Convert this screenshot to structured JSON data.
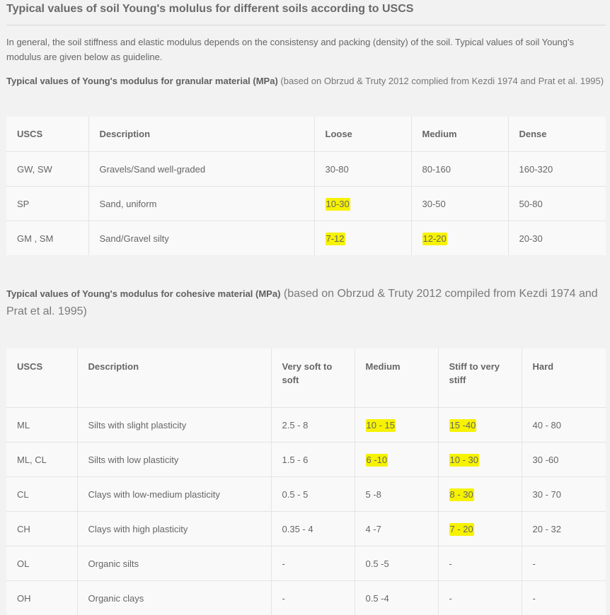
{
  "title": "Typical values of soil Young's molulus for different soils according to USCS",
  "intro": "In general, the soil stiffness and elastic modulus depends on the consistensy and packing (density) of the soil. Typical values of soil Young's modulus are given below as guideline.",
  "granular": {
    "heading_bold": "Typical values of Young's modulus for granular material (MPa)",
    "heading_rest": " (based on Obrzud & Truty 2012 complied from Kezdi 1974 and Prat et al. 1995)",
    "columns": [
      "USCS",
      "Description",
      "Loose",
      "Medium",
      "Dense"
    ],
    "rows": [
      [
        "GW, SW",
        "Gravels/Sand well-graded",
        "30-80",
        "80-160",
        "160-320"
      ],
      [
        "SP",
        "Sand, uniform",
        "10-30",
        "30-50",
        "50-80"
      ],
      [
        "GM , SM",
        "Sand/Gravel silty",
        "7-12",
        "12-20",
        "20-30"
      ]
    ]
  },
  "cohesive": {
    "heading_bold": "Typical values of Young's modulus for cohesive material (MPa)",
    "heading_rest": " (based on Obrzud & Truty 2012 compiled from Kezdi 1974 and Prat et al. 1995)",
    "columns": [
      "USCS",
      "Description",
      "Very soft to soft",
      "Medium",
      "Stiff to very stiff",
      "Hard"
    ],
    "rows": [
      [
        "ML",
        "Silts with slight plasticity",
        "2.5 - 8",
        "10 - 15",
        "15 -40",
        "40 - 80"
      ],
      [
        "ML, CL",
        "Silts with low plasticity",
        "1.5 - 6",
        "6 -10",
        "10 - 30",
        "30 -60"
      ],
      [
        "CL",
        "Clays with low-medium plasticity",
        "0.5 - 5",
        "5 -8",
        "8 - 30",
        "30 - 70"
      ],
      [
        "CH",
        "Clays with high plasticity",
        "0.35 - 4",
        "4 -7",
        "7 - 20",
        "20 - 32"
      ],
      [
        "OL",
        "Organic silts",
        "-",
        "0.5 -5",
        "-",
        "-"
      ],
      [
        "OH",
        "Organic clays",
        "-",
        "0.5 -4",
        "-",
        "-"
      ]
    ]
  },
  "highlight_color": "#f6f200"
}
